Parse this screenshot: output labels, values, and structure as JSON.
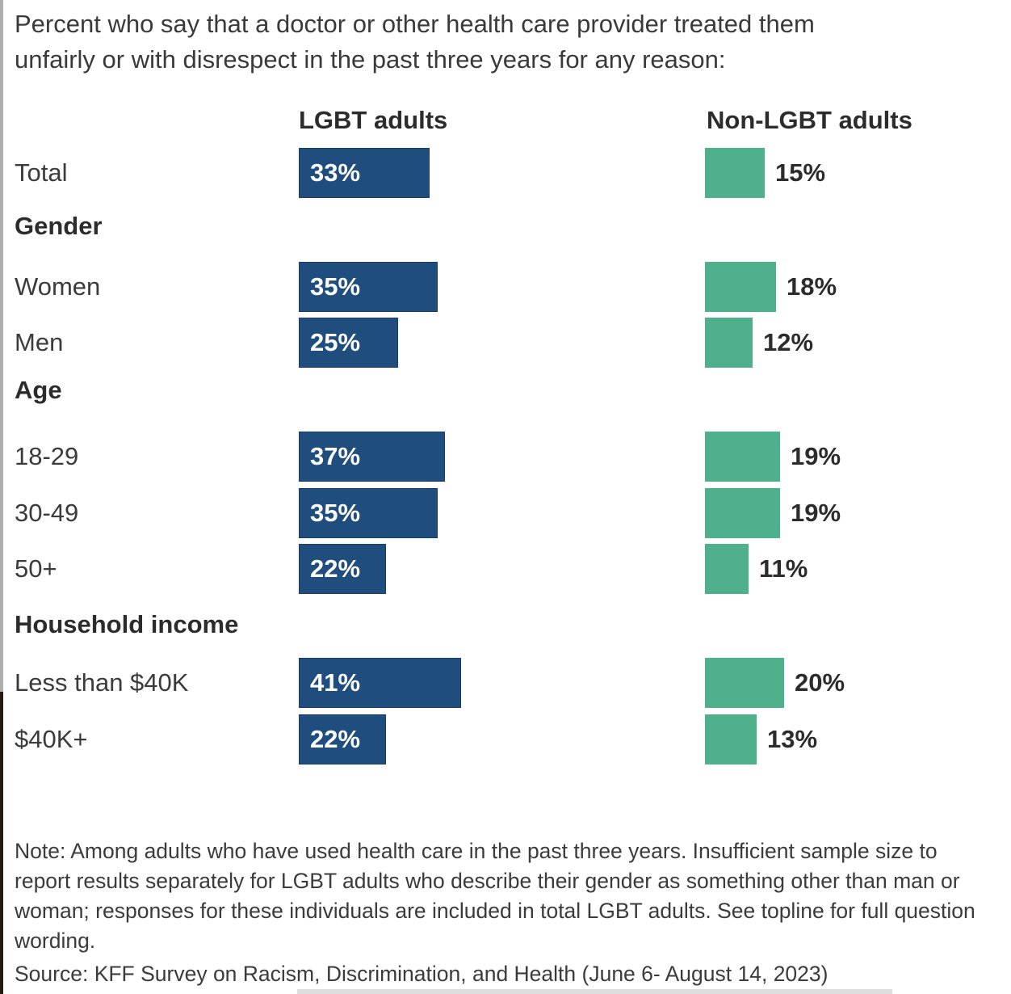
{
  "title": {
    "lines": [
      "Percent who say that a doctor or other health care provider treated them",
      "unfairly or with disrespect in the past three years for any reason:"
    ]
  },
  "columns": {
    "lgbt": "LGBT adults",
    "non_lgbt": "Non-LGBT adults"
  },
  "colors": {
    "lgbt_bar": "#1F4D7E",
    "non_lgbt_bar": "#4FB08C",
    "text_dark": "#2C2C2C",
    "bar_label_inside": "#FFFFFF"
  },
  "chart_data": {
    "type": "bar",
    "orientation": "horizontal",
    "unit": "%",
    "title": "Percent who say that a doctor or other health care provider treated them unfairly or with disrespect in the past three years for any reason:",
    "series": [
      {
        "name": "LGBT adults",
        "color": "#1F4D7E",
        "value_label_position": "inside-left"
      },
      {
        "name": "Non-LGBT adults",
        "color": "#4FB08C",
        "value_label_position": "outside-right"
      }
    ],
    "xlim": [
      0,
      100
    ],
    "grid": false,
    "groups": [
      {
        "header": "",
        "rows": [
          {
            "label": "Total",
            "lgbt": 33,
            "non_lgbt": 15
          }
        ]
      },
      {
        "header": "Gender",
        "rows": [
          {
            "label": "Women",
            "lgbt": 35,
            "non_lgbt": 18
          },
          {
            "label": "Men",
            "lgbt": 25,
            "non_lgbt": 12
          }
        ]
      },
      {
        "header": "Age",
        "rows": [
          {
            "label": "18-29",
            "lgbt": 37,
            "non_lgbt": 19
          },
          {
            "label": "30-49",
            "lgbt": 35,
            "non_lgbt": 19
          },
          {
            "label": "50+",
            "lgbt": 22,
            "non_lgbt": 11
          }
        ]
      },
      {
        "header": "Household income",
        "rows": [
          {
            "label": "Less than $40K",
            "lgbt": 41,
            "non_lgbt": 20
          },
          {
            "label": "$40K+",
            "lgbt": 22,
            "non_lgbt": 13
          }
        ]
      }
    ]
  },
  "note": "Note: Among adults who have used health care in the past three years. Insufficient sample size to report results separately for LGBT adults who describe their gender as something other than man or woman; responses for these individuals are included in total LGBT adults. See topline for full question wording.",
  "source": "Source: KFF Survey on Racism, Discrimination, and Health (June 6- August 14, 2023)"
}
